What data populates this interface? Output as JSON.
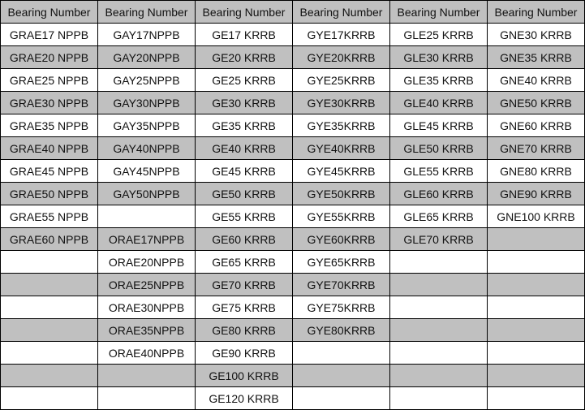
{
  "headers": [
    "Bearing Number",
    "Bearing Number",
    "Bearing Number",
    "Bearing Number",
    "Bearing Number",
    "Bearing Number"
  ],
  "rows": [
    [
      "GRAE17 NPPB",
      "GAY17NPPB",
      "GE17 KRRB",
      "GYE17KRRB",
      "GLE25 KRRB",
      "GNE30 KRRB"
    ],
    [
      "GRAE20 NPPB",
      "GAY20NPPB",
      "GE20 KRRB",
      "GYE20KRRB",
      "GLE30 KRRB",
      "GNE35 KRRB"
    ],
    [
      "GRAE25 NPPB",
      "GAY25NPPB",
      "GE25 KRRB",
      "GYE25KRRB",
      "GLE35 KRRB",
      "GNE40 KRRB"
    ],
    [
      "GRAE30 NPPB",
      "GAY30NPPB",
      "GE30 KRRB",
      "GYE30KRRB",
      "GLE40 KRRB",
      "GNE50 KRRB"
    ],
    [
      "GRAE35 NPPB",
      "GAY35NPPB",
      "GE35 KRRB",
      "GYE35KRRB",
      "GLE45 KRRB",
      "GNE60 KRRB"
    ],
    [
      "GRAE40 NPPB",
      "GAY40NPPB",
      "GE40 KRRB",
      "GYE40KRRB",
      "GLE50 KRRB",
      "GNE70 KRRB"
    ],
    [
      "GRAE45 NPPB",
      "GAY45NPPB",
      "GE45 KRRB",
      "GYE45KRRB",
      "GLE55 KRRB",
      "GNE80 KRRB"
    ],
    [
      "GRAE50 NPPB",
      "GAY50NPPB",
      "GE50 KRRB",
      "GYE50KRRB",
      "GLE60 KRRB",
      "GNE90 KRRB"
    ],
    [
      "GRAE55 NPPB",
      "",
      "GE55 KRRB",
      "GYE55KRRB",
      "GLE65 KRRB",
      "GNE100 KRRB"
    ],
    [
      "GRAE60 NPPB",
      "ORAE17NPPB",
      "GE60 KRRB",
      "GYE60KRRB",
      "GLE70 KRRB",
      ""
    ],
    [
      "",
      "ORAE20NPPB",
      "GE65 KRRB",
      "GYE65KRRB",
      "",
      ""
    ],
    [
      "",
      "ORAE25NPPB",
      "GE70 KRRB",
      "GYE70KRRB",
      "",
      ""
    ],
    [
      "",
      "ORAE30NPPB",
      "GE75 KRRB",
      "GYE75KRRB",
      "",
      ""
    ],
    [
      "",
      "ORAE35NPPB",
      "GE80 KRRB",
      "GYE80KRRB",
      "",
      ""
    ],
    [
      "",
      "ORAE40NPPB",
      "GE90 KRRB",
      "",
      "",
      ""
    ],
    [
      "",
      "",
      "GE100 KRRB",
      "",
      "",
      ""
    ],
    [
      "",
      "",
      "GE120 KRRB",
      "",
      "",
      ""
    ]
  ],
  "colors": {
    "stripe": "#c0c0c0",
    "header": "#c0c0c0",
    "border": "#000000"
  }
}
